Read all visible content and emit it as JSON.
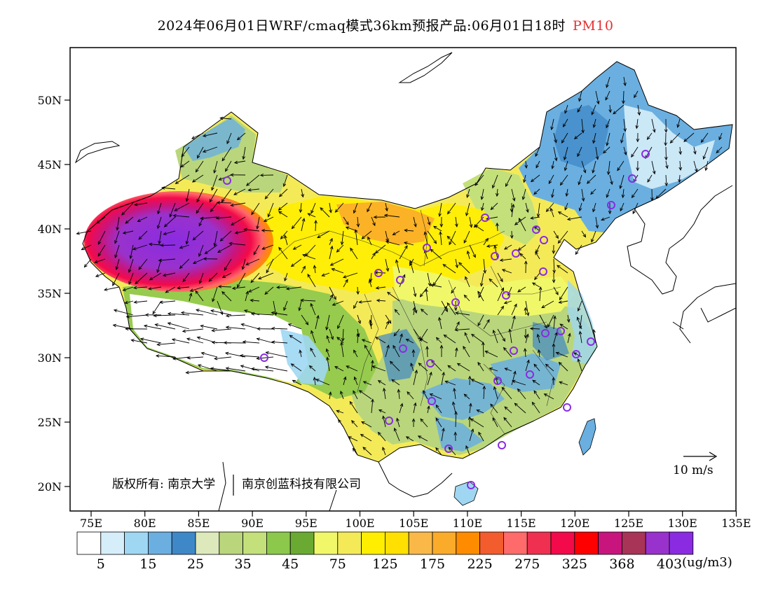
{
  "title": {
    "main": "2024年06月01日WRF/cmaq模式36km预报产品:06月01日18时",
    "pollutant": "PM10"
  },
  "map": {
    "lat_ticks": [
      "50N",
      "45N",
      "40N",
      "35N",
      "30N",
      "25N",
      "20N"
    ],
    "lon_ticks": [
      "75E",
      "80E",
      "85E",
      "90E",
      "95E",
      "100E",
      "105E",
      "110E",
      "115E",
      "120E",
      "125E",
      "130E",
      "135E"
    ],
    "copyright": "版权所有: 南京大学",
    "copyright_company": "南京创蓝科技有限公司",
    "wind_scale_label": "10 m/s"
  },
  "legend": {
    "colors": [
      "#ffffff",
      "#d6eefa",
      "#9fd7f3",
      "#6aafe0",
      "#3f88c8",
      "#dde9bb",
      "#b9d67c",
      "#c3e07a",
      "#8cc84c",
      "#6aaa32",
      "#f0f86a",
      "#f4ea58",
      "#ffee00",
      "#ffe000",
      "#f9b848",
      "#fbab2a",
      "#ff8c00",
      "#f35c2c",
      "#ff6a6a",
      "#f03050",
      "#f30a4a",
      "#ff0000",
      "#c8157e",
      "#a83458",
      "#9932cc",
      "#8a2be2"
    ],
    "labels": [
      "5",
      "15",
      "25",
      "35",
      "45",
      "75",
      "125",
      "175",
      "225",
      "275",
      "325",
      "368",
      "403"
    ],
    "unit": "(ug/m3)"
  },
  "colors": {
    "pollutant_label": "#e53030",
    "city_marker": "#8a2be2",
    "grid_frame": "#000000"
  }
}
